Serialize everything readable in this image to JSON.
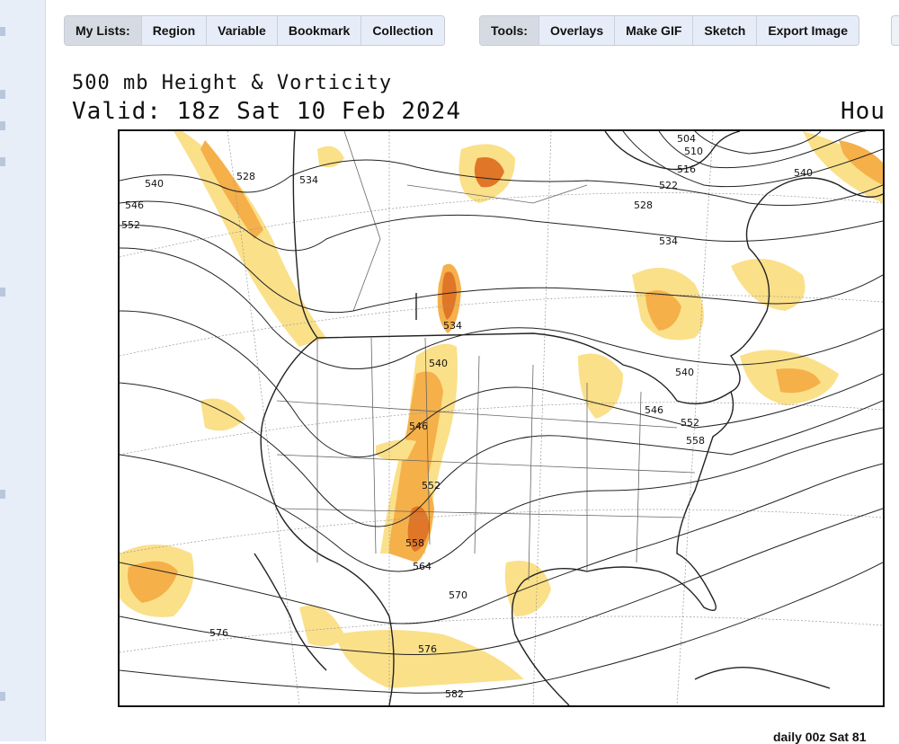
{
  "toolbar": {
    "lists": {
      "label": "My Lists:",
      "buttons": [
        "Region",
        "Variable",
        "Bookmark",
        "Collection"
      ]
    },
    "tools": {
      "label": "Tools:",
      "buttons": [
        "Overlays",
        "Make GIF",
        "Sketch",
        "Export Image"
      ]
    }
  },
  "map": {
    "title": "500 mb Height & Vorticity",
    "valid": "Valid: 18z Sat 10 Feb 2024",
    "hour_label": "Hou",
    "contour_labels": [
      "504",
      "510",
      "516",
      "522",
      "528",
      "534",
      "540",
      "546",
      "552",
      "558",
      "564",
      "570",
      "576",
      "582"
    ],
    "colors": {
      "vort_low": "#fbe08a",
      "vort_mid": "#f5b04a",
      "vort_high": "#e07628",
      "vort_max": "#c63e1a",
      "contour": "#222222",
      "border": "#9a9a9a"
    }
  },
  "bottom": {
    "right_text": "daily 00z Sat 81"
  }
}
